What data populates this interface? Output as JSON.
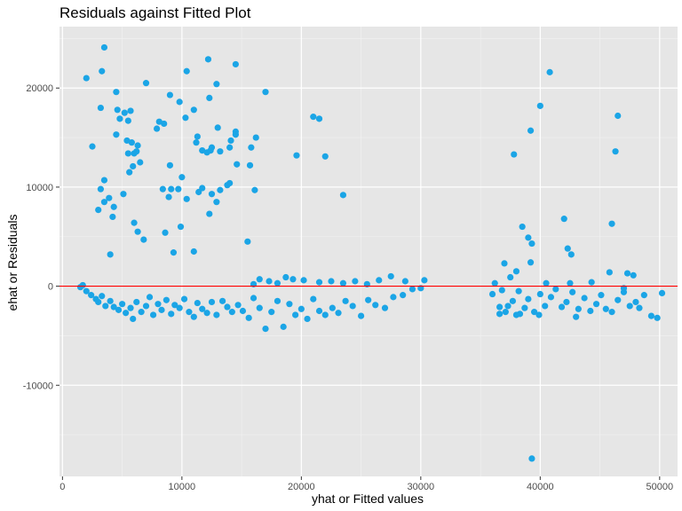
{
  "chart_data": {
    "type": "scatter",
    "title": "Residuals against Fitted Plot",
    "xlabel": "yhat or Fitted values",
    "ylabel": "ehat or Residuals",
    "xlim": [
      -250,
      51500
    ],
    "ylim": [
      -19200,
      26200
    ],
    "x_ticks": [
      {
        "value": 0,
        "label": "0"
      },
      {
        "value": 10000,
        "label": "10000"
      },
      {
        "value": 20000,
        "label": "20000"
      },
      {
        "value": 30000,
        "label": "30000"
      },
      {
        "value": 40000,
        "label": "40000"
      },
      {
        "value": 50000,
        "label": "50000"
      }
    ],
    "y_ticks": [
      {
        "value": -10000,
        "label": "-10000"
      },
      {
        "value": 0,
        "label": "0"
      },
      {
        "value": 10000,
        "label": "10000"
      },
      {
        "value": 20000,
        "label": "20000"
      }
    ],
    "reference_line": {
      "y": 0,
      "color": "#ff0000"
    },
    "point_color": "#1ba5e6",
    "panel_color": "#e6e6e6",
    "grid": true,
    "points": [
      [
        2000,
        21000
      ],
      [
        3500,
        24100
      ],
      [
        3300,
        21700
      ],
      [
        2500,
        14100
      ],
      [
        3200,
        18000
      ],
      [
        3500,
        10700
      ],
      [
        3500,
        8500
      ],
      [
        3200,
        9800
      ],
      [
        3000,
        7700
      ],
      [
        3900,
        8900
      ],
      [
        4200,
        7000
      ],
      [
        4000,
        3200
      ],
      [
        4500,
        19600
      ],
      [
        4600,
        17800
      ],
      [
        4800,
        16900
      ],
      [
        5200,
        17500
      ],
      [
        5500,
        16700
      ],
      [
        5400,
        14700
      ],
      [
        5700,
        17700
      ],
      [
        5800,
        14500
      ],
      [
        6000,
        13400
      ],
      [
        5500,
        13400
      ],
      [
        5900,
        12100
      ],
      [
        6300,
        14200
      ],
      [
        6200,
        13600
      ],
      [
        6500,
        12500
      ],
      [
        5600,
        11500
      ],
      [
        5100,
        9300
      ],
      [
        4300,
        8000
      ],
      [
        4500,
        15300
      ],
      [
        6000,
        6400
      ],
      [
        6300,
        5500
      ],
      [
        6800,
        4700
      ],
      [
        7000,
        20500
      ],
      [
        7900,
        15900
      ],
      [
        8100,
        16600
      ],
      [
        8500,
        16400
      ],
      [
        9000,
        19300
      ],
      [
        9800,
        18600
      ],
      [
        10300,
        17000
      ],
      [
        10400,
        21700
      ],
      [
        9000,
        12200
      ],
      [
        8400,
        9800
      ],
      [
        9100,
        9800
      ],
      [
        9700,
        9800
      ],
      [
        8900,
        9000
      ],
      [
        10000,
        11000
      ],
      [
        10400,
        8800
      ],
      [
        9900,
        6000
      ],
      [
        8600,
        5400
      ],
      [
        9300,
        3400
      ],
      [
        11000,
        17800
      ],
      [
        11200,
        14500
      ],
      [
        11300,
        15100
      ],
      [
        11700,
        13700
      ],
      [
        12200,
        22900
      ],
      [
        12300,
        19000
      ],
      [
        12100,
        13500
      ],
      [
        12400,
        13700
      ],
      [
        12500,
        14000
      ],
      [
        12900,
        20400
      ],
      [
        13000,
        16000
      ],
      [
        13200,
        13600
      ],
      [
        14000,
        14000
      ],
      [
        14500,
        22400
      ],
      [
        14100,
        14700
      ],
      [
        14500,
        15600
      ],
      [
        14500,
        15300
      ],
      [
        14600,
        12300
      ],
      [
        11400,
        9500
      ],
      [
        11700,
        9900
      ],
      [
        12500,
        9300
      ],
      [
        12300,
        7300
      ],
      [
        12900,
        8500
      ],
      [
        13800,
        10200
      ],
      [
        14000,
        10400
      ],
      [
        13200,
        9700
      ],
      [
        11000,
        3500
      ],
      [
        15800,
        14000
      ],
      [
        16200,
        15000
      ],
      [
        17000,
        19600
      ],
      [
        15700,
        12200
      ],
      [
        16100,
        9700
      ],
      [
        15500,
        4500
      ],
      [
        19600,
        13200
      ],
      [
        21000,
        17100
      ],
      [
        21500,
        16900
      ],
      [
        22000,
        13100
      ],
      [
        23500,
        9200
      ],
      [
        37800,
        13300
      ],
      [
        39200,
        15700
      ],
      [
        40000,
        18200
      ],
      [
        40800,
        21600
      ],
      [
        38000,
        1500
      ],
      [
        37000,
        2300
      ],
      [
        37500,
        900
      ],
      [
        38500,
        6000
      ],
      [
        39000,
        4900
      ],
      [
        39300,
        4300
      ],
      [
        39200,
        2400
      ],
      [
        39300,
        -17400
      ],
      [
        42000,
        6800
      ],
      [
        42300,
        3800
      ],
      [
        42600,
        3200
      ],
      [
        46000,
        6300
      ],
      [
        46300,
        13600
      ],
      [
        46500,
        17200
      ],
      [
        45800,
        1400
      ],
      [
        47300,
        1300
      ],
      [
        47800,
        1100
      ],
      [
        36000,
        -800
      ],
      [
        36600,
        -2800
      ],
      [
        38000,
        -2900
      ],
      [
        43000,
        -3100
      ],
      [
        48300,
        -2200
      ],
      [
        49300,
        -3000
      ],
      [
        49800,
        -3200
      ],
      [
        50200,
        -700
      ],
      [
        1500,
        -100
      ],
      [
        1700,
        100
      ],
      [
        2000,
        -500
      ],
      [
        2400,
        -900
      ],
      [
        2800,
        -1300
      ],
      [
        3000,
        -1600
      ],
      [
        3300,
        -1000
      ],
      [
        3600,
        -2000
      ],
      [
        4000,
        -1500
      ],
      [
        4300,
        -2100
      ],
      [
        4700,
        -2400
      ],
      [
        5000,
        -1800
      ],
      [
        5300,
        -2700
      ],
      [
        5700,
        -2200
      ],
      [
        5900,
        -3300
      ],
      [
        6200,
        -1600
      ],
      [
        6600,
        -2600
      ],
      [
        7000,
        -2000
      ],
      [
        7300,
        -1100
      ],
      [
        7600,
        -2900
      ],
      [
        8000,
        -1800
      ],
      [
        8300,
        -2400
      ],
      [
        8700,
        -1400
      ],
      [
        9100,
        -2800
      ],
      [
        9400,
        -1900
      ],
      [
        9800,
        -2200
      ],
      [
        10200,
        -1300
      ],
      [
        10600,
        -2600
      ],
      [
        11000,
        -3100
      ],
      [
        11300,
        -1700
      ],
      [
        11700,
        -2300
      ],
      [
        12100,
        -2700
      ],
      [
        12500,
        -1600
      ],
      [
        12900,
        -2900
      ],
      [
        13400,
        -1500
      ],
      [
        13800,
        -2100
      ],
      [
        14200,
        -2600
      ],
      [
        14700,
        -1900
      ],
      [
        15100,
        -2500
      ],
      [
        15600,
        -3200
      ],
      [
        16000,
        -1200
      ],
      [
        16500,
        -2200
      ],
      [
        17000,
        -4300
      ],
      [
        17500,
        -2600
      ],
      [
        18000,
        -1500
      ],
      [
        18500,
        -4100
      ],
      [
        19000,
        -1800
      ],
      [
        19500,
        -2900
      ],
      [
        20000,
        -2300
      ],
      [
        20500,
        -3300
      ],
      [
        21000,
        -1300
      ],
      [
        21500,
        -2500
      ],
      [
        22000,
        -2900
      ],
      [
        22600,
        -2200
      ],
      [
        23100,
        -2700
      ],
      [
        23700,
        -1500
      ],
      [
        24300,
        -2000
      ],
      [
        25000,
        -3000
      ],
      [
        25600,
        -1400
      ],
      [
        26200,
        -1900
      ],
      [
        27000,
        -2200
      ],
      [
        27700,
        -1100
      ],
      [
        28500,
        -900
      ],
      [
        29300,
        -300
      ],
      [
        30000,
        -200
      ],
      [
        16000,
        200
      ],
      [
        16500,
        700
      ],
      [
        17300,
        500
      ],
      [
        18000,
        300
      ],
      [
        18700,
        900
      ],
      [
        19300,
        700
      ],
      [
        20200,
        600
      ],
      [
        21500,
        400
      ],
      [
        22500,
        500
      ],
      [
        23500,
        300
      ],
      [
        24500,
        500
      ],
      [
        25500,
        200
      ],
      [
        26500,
        600
      ],
      [
        27500,
        1000
      ],
      [
        28700,
        500
      ],
      [
        30300,
        600
      ],
      [
        36200,
        300
      ],
      [
        36800,
        -400
      ],
      [
        37300,
        -2000
      ],
      [
        37700,
        -1500
      ],
      [
        38200,
        -500
      ],
      [
        38700,
        -2200
      ],
      [
        39000,
        -1300
      ],
      [
        39500,
        -2600
      ],
      [
        40000,
        -800
      ],
      [
        40400,
        -2000
      ],
      [
        40900,
        -1100
      ],
      [
        41300,
        -300
      ],
      [
        41800,
        -2100
      ],
      [
        42200,
        -1600
      ],
      [
        42700,
        -600
      ],
      [
        43200,
        -2300
      ],
      [
        43700,
        -1200
      ],
      [
        44200,
        -2500
      ],
      [
        44700,
        -1800
      ],
      [
        45100,
        -900
      ],
      [
        45500,
        -2300
      ],
      [
        46000,
        -2600
      ],
      [
        46500,
        -1400
      ],
      [
        47000,
        -600
      ],
      [
        47500,
        -2000
      ],
      [
        48000,
        -1600
      ],
      [
        48700,
        -900
      ],
      [
        36600,
        -2100
      ],
      [
        37100,
        -2600
      ],
      [
        38300,
        -2800
      ],
      [
        39900,
        -2900
      ],
      [
        40500,
        300
      ],
      [
        42500,
        300
      ],
      [
        44300,
        400
      ],
      [
        47000,
        -200
      ]
    ]
  }
}
